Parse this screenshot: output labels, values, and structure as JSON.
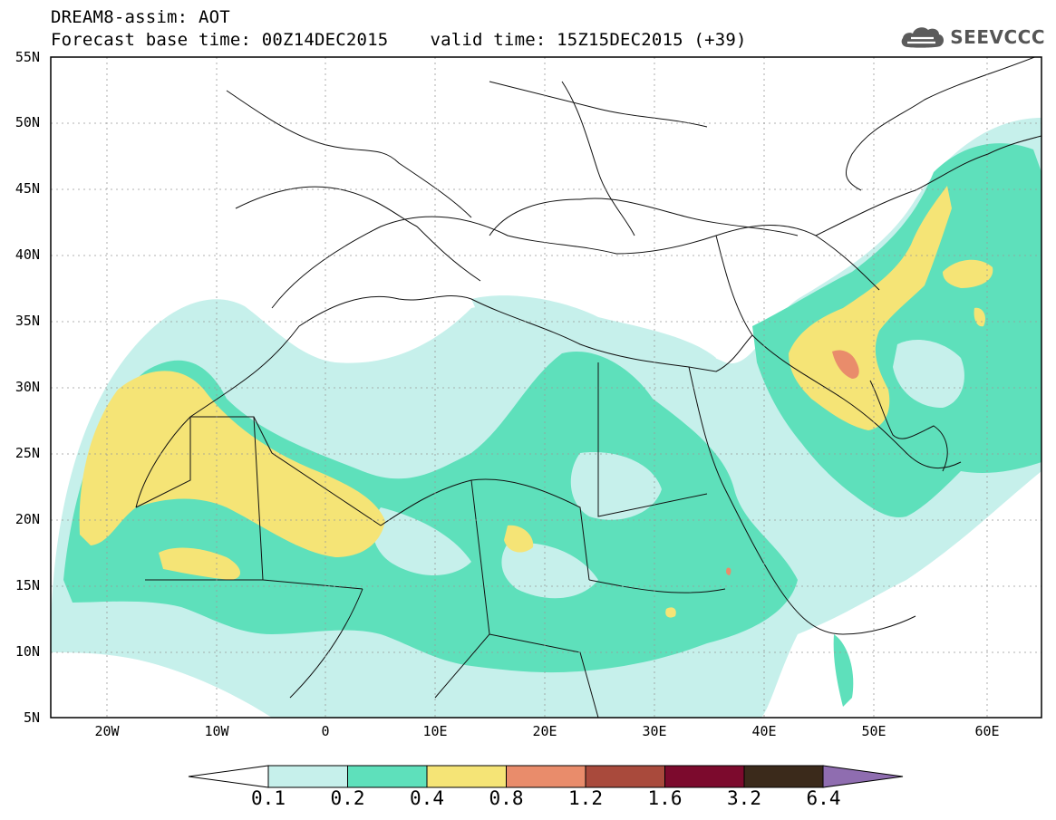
{
  "header": {
    "line1": "DREAM8-assim: AOT",
    "base_time": "Forecast base time: 00Z14DEC2015",
    "valid_time": "valid time: 15Z15DEC2015 (+39)"
  },
  "logo": {
    "text": "SEEVCCC",
    "icon": "cloud-icon",
    "color": "#555555"
  },
  "map": {
    "lon_range": [
      -25,
      65
    ],
    "lat_range": [
      5,
      55
    ],
    "lat_ticks": [
      "5N",
      "10N",
      "15N",
      "20N",
      "25N",
      "30N",
      "35N",
      "40N",
      "45N",
      "50N",
      "55N"
    ],
    "lon_ticks": [
      "20W",
      "10W",
      "0",
      "10E",
      "20E",
      "30E",
      "40E",
      "50E",
      "60E"
    ]
  },
  "colorbar": {
    "labels": [
      "0.1",
      "0.2",
      "0.4",
      "0.8",
      "1.2",
      "1.6",
      "3.2",
      "6.4"
    ],
    "colors": [
      "#c6f0eb",
      "#5ee0bb",
      "#f5e476",
      "#e98c6b",
      "#a94a3c",
      "#7c0a2d",
      "#3b2a1b",
      "#8f6db0"
    ]
  }
}
